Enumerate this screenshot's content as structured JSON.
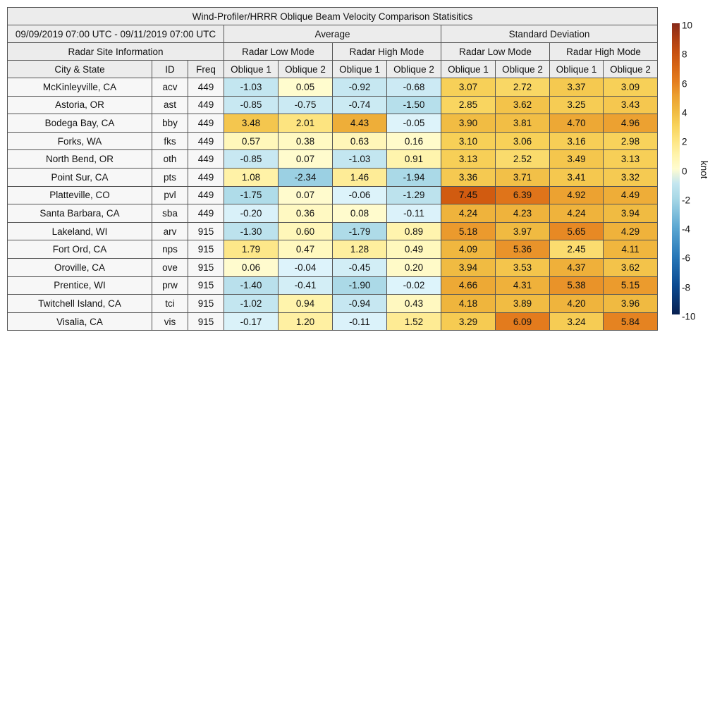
{
  "chart_data": {
    "type": "table",
    "title": "Wind-Profiler/HRRR Oblique Beam Velocity Comparison Statisitics",
    "period": "09/09/2019 07:00 UTC - 09/11/2019 07:00 UTC",
    "groups": [
      "Average",
      "Standard Deviation"
    ],
    "site_info_label": "Radar Site Information",
    "modes": [
      "Radar Low Mode",
      "Radar High Mode"
    ],
    "columns": [
      "City & State",
      "ID",
      "Freq",
      "Oblique 1",
      "Oblique 2"
    ],
    "rows": [
      {
        "city": "McKinleyville, CA",
        "id": "acv",
        "freq": "449",
        "avg": [
          "-1.03",
          "0.05",
          "-0.92",
          "-0.68"
        ],
        "std": [
          "3.07",
          "2.72",
          "3.37",
          "3.09"
        ]
      },
      {
        "city": "Astoria, OR",
        "id": "ast",
        "freq": "449",
        "avg": [
          "-0.85",
          "-0.75",
          "-0.74",
          "-1.50"
        ],
        "std": [
          "2.85",
          "3.62",
          "3.25",
          "3.43"
        ]
      },
      {
        "city": "Bodega Bay, CA",
        "id": "bby",
        "freq": "449",
        "avg": [
          "3.48",
          "2.01",
          "4.43",
          "-0.05"
        ],
        "std": [
          "3.90",
          "3.81",
          "4.70",
          "4.96"
        ]
      },
      {
        "city": "Forks, WA",
        "id": "fks",
        "freq": "449",
        "avg": [
          "0.57",
          "0.38",
          "0.63",
          "0.16"
        ],
        "std": [
          "3.10",
          "3.06",
          "3.16",
          "2.98"
        ]
      },
      {
        "city": "North Bend, OR",
        "id": "oth",
        "freq": "449",
        "avg": [
          "-0.85",
          "0.07",
          "-1.03",
          "0.91"
        ],
        "std": [
          "3.13",
          "2.52",
          "3.49",
          "3.13"
        ]
      },
      {
        "city": "Point Sur, CA",
        "id": "pts",
        "freq": "449",
        "avg": [
          "1.08",
          "-2.34",
          "1.46",
          "-1.94"
        ],
        "std": [
          "3.36",
          "3.71",
          "3.41",
          "3.32"
        ]
      },
      {
        "city": "Platteville, CO",
        "id": "pvl",
        "freq": "449",
        "avg": [
          "-1.75",
          "0.07",
          "-0.06",
          "-1.29"
        ],
        "std": [
          "7.45",
          "6.39",
          "4.92",
          "4.49"
        ]
      },
      {
        "city": "Santa Barbara, CA",
        "id": "sba",
        "freq": "449",
        "avg": [
          "-0.20",
          "0.36",
          "0.08",
          "-0.11"
        ],
        "std": [
          "4.24",
          "4.23",
          "4.24",
          "3.94"
        ]
      },
      {
        "city": "Lakeland, WI",
        "id": "arv",
        "freq": "915",
        "avg": [
          "-1.30",
          "0.60",
          "-1.79",
          "0.89"
        ],
        "std": [
          "5.18",
          "3.97",
          "5.65",
          "4.29"
        ]
      },
      {
        "city": "Fort Ord, CA",
        "id": "nps",
        "freq": "915",
        "avg": [
          "1.79",
          "0.47",
          "1.28",
          "0.49"
        ],
        "std": [
          "4.09",
          "5.36",
          "2.45",
          "4.11"
        ]
      },
      {
        "city": "Oroville, CA",
        "id": "ove",
        "freq": "915",
        "avg": [
          "0.06",
          "-0.04",
          "-0.45",
          "0.20"
        ],
        "std": [
          "3.94",
          "3.53",
          "4.37",
          "3.62"
        ]
      },
      {
        "city": "Prentice, WI",
        "id": "prw",
        "freq": "915",
        "avg": [
          "-1.40",
          "-0.41",
          "-1.90",
          "-0.02"
        ],
        "std": [
          "4.66",
          "4.31",
          "5.38",
          "5.15"
        ]
      },
      {
        "city": "Twitchell Island, CA",
        "id": "tci",
        "freq": "915",
        "avg": [
          "-1.02",
          "0.94",
          "-0.94",
          "0.43"
        ],
        "std": [
          "4.18",
          "3.89",
          "4.20",
          "3.96"
        ]
      },
      {
        "city": "Visalia, CA",
        "id": "vis",
        "freq": "915",
        "avg": [
          "-0.17",
          "1.20",
          "-0.11",
          "1.52"
        ],
        "std": [
          "3.29",
          "6.09",
          "3.24",
          "5.84"
        ]
      }
    ],
    "colorbar": {
      "label": "knot",
      "range": [
        -10,
        10
      ],
      "ticks": [
        "10",
        "8",
        "6",
        "4",
        "2",
        "0",
        "-2",
        "-4",
        "-6",
        "-8",
        "-10"
      ]
    }
  }
}
